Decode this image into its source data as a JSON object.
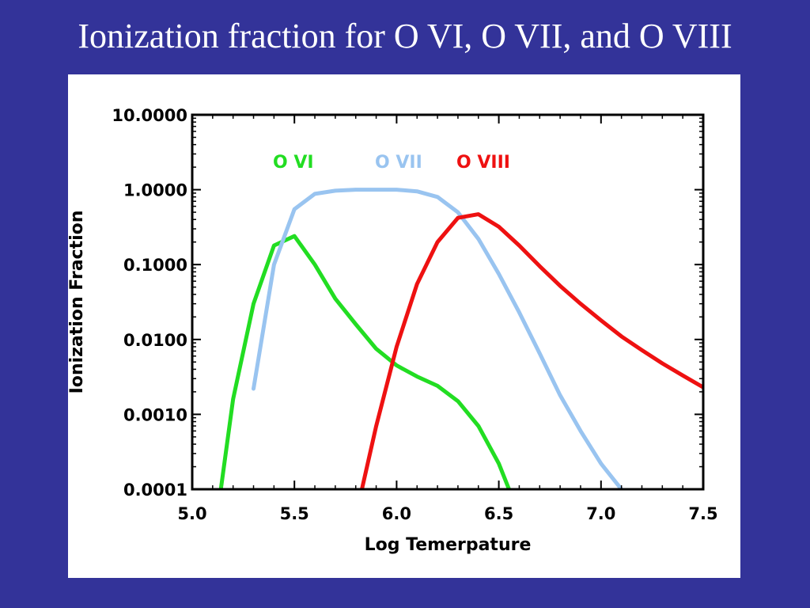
{
  "slide": {
    "title": "Ionization fraction for O VI, O VII, and O VIII",
    "background_color": "#333399"
  },
  "chart_data": {
    "type": "line",
    "title": "",
    "xlabel": "Log Temerpature",
    "ylabel": "Ionization Fraction",
    "xlim": [
      5.0,
      7.5
    ],
    "ylim": [
      0.0001,
      10.0
    ],
    "yscale": "log",
    "grid": false,
    "legend_placement": "top",
    "x_ticks": [
      {
        "value": 5.0,
        "label": "5.0"
      },
      {
        "value": 5.5,
        "label": "5.5"
      },
      {
        "value": 6.0,
        "label": "6.0"
      },
      {
        "value": 6.5,
        "label": "6.5"
      },
      {
        "value": 7.0,
        "label": "7.0"
      },
      {
        "value": 7.5,
        "label": "7.5"
      }
    ],
    "y_ticks": [
      {
        "value": 10.0,
        "label": "10.0000"
      },
      {
        "value": 1.0,
        "label": "1.0000"
      },
      {
        "value": 0.1,
        "label": "0.1000"
      },
      {
        "value": 0.01,
        "label": "0.0100"
      },
      {
        "value": 0.001,
        "label": "0.0010"
      },
      {
        "value": 0.0001,
        "label": "0.0001"
      }
    ],
    "series": [
      {
        "name": "O VI",
        "color": "#22dd22",
        "points": [
          [
            5.14,
            0.0001
          ],
          [
            5.2,
            0.0016
          ],
          [
            5.3,
            0.03
          ],
          [
            5.4,
            0.18
          ],
          [
            5.5,
            0.24
          ],
          [
            5.6,
            0.1
          ],
          [
            5.7,
            0.035
          ],
          [
            5.8,
            0.016
          ],
          [
            5.9,
            0.0075
          ],
          [
            6.0,
            0.0045
          ],
          [
            6.1,
            0.0032
          ],
          [
            6.2,
            0.0024
          ],
          [
            6.3,
            0.0015
          ],
          [
            6.4,
            0.0007
          ],
          [
            6.5,
            0.00022
          ],
          [
            6.55,
            0.0001
          ]
        ]
      },
      {
        "name": "O VII",
        "color": "#99c4f0",
        "points": [
          [
            5.3,
            0.0022
          ],
          [
            5.4,
            0.1
          ],
          [
            5.5,
            0.55
          ],
          [
            5.6,
            0.88
          ],
          [
            5.7,
            0.97
          ],
          [
            5.8,
            1.0
          ],
          [
            5.9,
            1.0
          ],
          [
            6.0,
            1.0
          ],
          [
            6.1,
            0.95
          ],
          [
            6.2,
            0.8
          ],
          [
            6.3,
            0.5
          ],
          [
            6.4,
            0.22
          ],
          [
            6.5,
            0.075
          ],
          [
            6.6,
            0.023
          ],
          [
            6.7,
            0.0065
          ],
          [
            6.8,
            0.0018
          ],
          [
            6.9,
            0.0006
          ],
          [
            7.0,
            0.00022
          ],
          [
            7.1,
            0.0001
          ]
        ]
      },
      {
        "name": "O VIII",
        "color": "#ee1111",
        "points": [
          [
            5.83,
            0.0001
          ],
          [
            5.9,
            0.0007
          ],
          [
            6.0,
            0.008
          ],
          [
            6.1,
            0.055
          ],
          [
            6.2,
            0.2
          ],
          [
            6.3,
            0.42
          ],
          [
            6.4,
            0.47
          ],
          [
            6.5,
            0.32
          ],
          [
            6.6,
            0.18
          ],
          [
            6.7,
            0.095
          ],
          [
            6.8,
            0.052
          ],
          [
            6.9,
            0.03
          ],
          [
            7.0,
            0.018
          ],
          [
            7.1,
            0.011
          ],
          [
            7.2,
            0.0072
          ],
          [
            7.3,
            0.0048
          ],
          [
            7.4,
            0.0033
          ],
          [
            7.5,
            0.0023
          ]
        ]
      }
    ]
  }
}
